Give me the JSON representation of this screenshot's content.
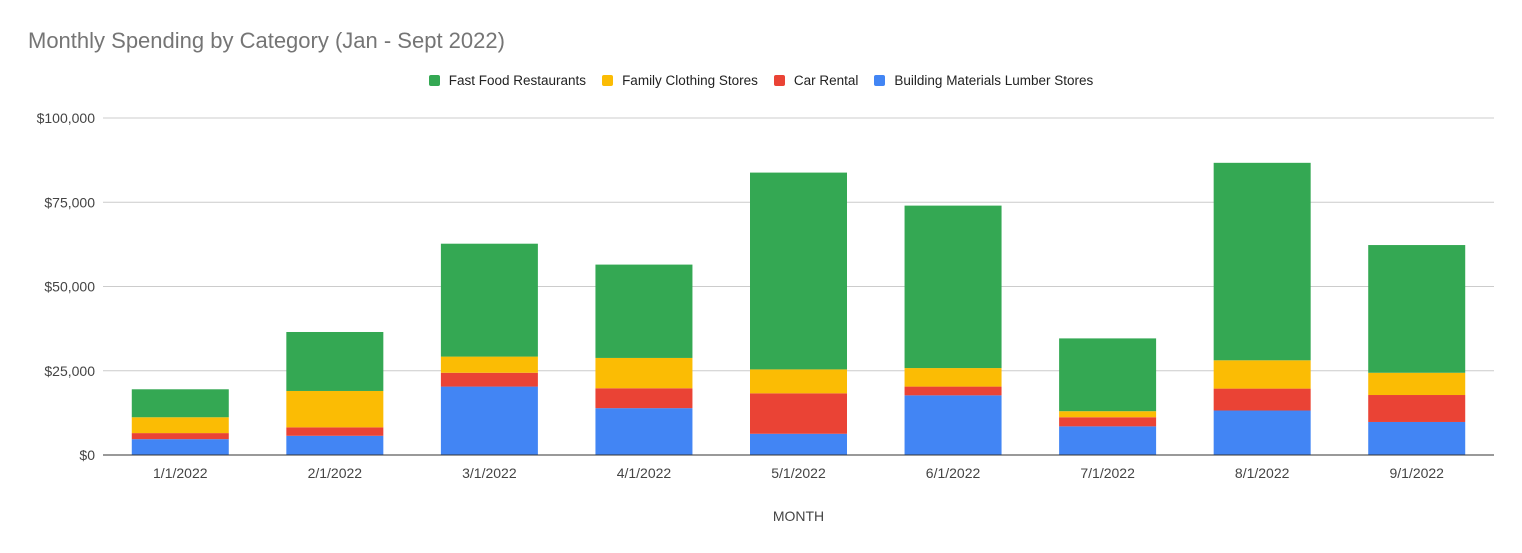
{
  "chart_data": {
    "type": "bar",
    "stacked": true,
    "title": "Monthly Spending by Category (Jan - Sept 2022)",
    "xlabel": "MONTH",
    "ylabel": "",
    "categories": [
      "1/1/2022",
      "2/1/2022",
      "3/1/2022",
      "4/1/2022",
      "5/1/2022",
      "6/1/2022",
      "7/1/2022",
      "8/1/2022",
      "9/1/2022"
    ],
    "series": [
      {
        "name": "Building Materials Lumber Stores",
        "color": "#4285F4",
        "values": [
          4700,
          5700,
          20300,
          13900,
          6300,
          17700,
          8500,
          13200,
          9800
        ]
      },
      {
        "name": "Car Rental",
        "color": "#EA4335",
        "values": [
          1800,
          2500,
          4100,
          5900,
          12000,
          2600,
          2700,
          6500,
          8000
        ]
      },
      {
        "name": "Family Clothing Stores",
        "color": "#FBBC04",
        "values": [
          4700,
          10800,
          4800,
          9000,
          7100,
          5500,
          1800,
          8400,
          6600
        ]
      },
      {
        "name": "Fast Food Restaurants",
        "color": "#34A853",
        "values": [
          8300,
          17500,
          33500,
          27700,
          58400,
          48200,
          21600,
          58600,
          37900
        ]
      }
    ],
    "legend_order": [
      "Fast Food Restaurants",
      "Family Clothing Stores",
      "Car Rental",
      "Building Materials Lumber Stores"
    ],
    "legend_position": "top",
    "ylim": [
      0,
      100000
    ],
    "yticks": [
      0,
      25000,
      50000,
      75000,
      100000
    ],
    "ytick_labels": [
      "$0",
      "$25,000",
      "$50,000",
      "$75,000",
      "$100,000"
    ],
    "grid": true
  }
}
